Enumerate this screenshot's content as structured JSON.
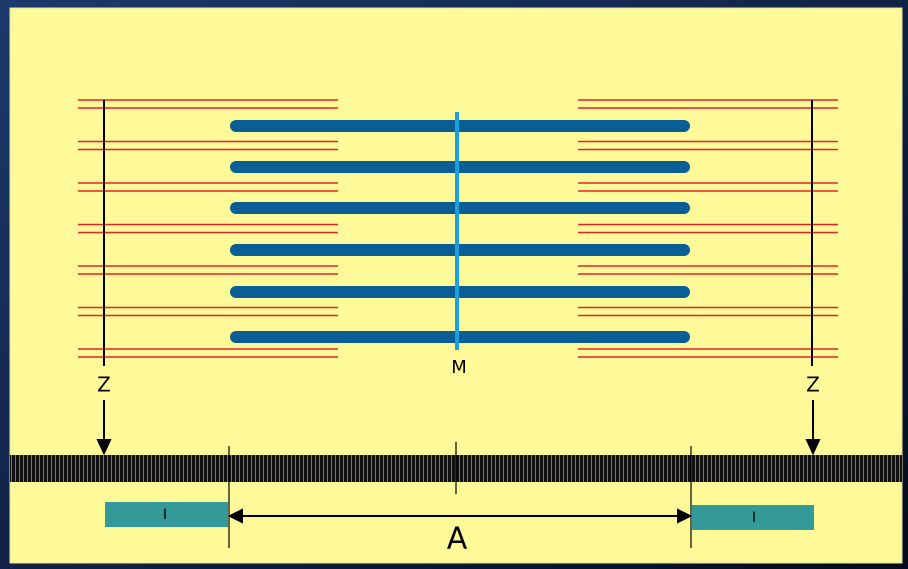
{
  "labels": {
    "z_left": "Z",
    "z_right": "Z",
    "m": "M",
    "a": "A",
    "i_left": "I",
    "i_right": "I"
  }
}
